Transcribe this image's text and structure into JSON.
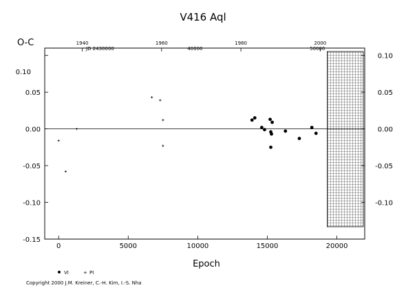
{
  "chart_data": {
    "type": "scatter",
    "title": "V416  Aql",
    "xlabel": "Epoch",
    "ylabel": "O-C",
    "xlim": [
      -1000,
      22000
    ],
    "ylim": [
      -0.15,
      0.11
    ],
    "x_ticks": [
      "0",
      "5000",
      "10000",
      "15000",
      "20000"
    ],
    "y_ticks": [
      "0.05",
      "0.00",
      "-0.05",
      "-0.10",
      "-0.15"
    ],
    "y_ticks_right": [
      "0.10",
      "0.05",
      "0.00",
      "-0.05",
      "-0.10"
    ],
    "y_top_left_label": "0.10",
    "top_year_ticks": [
      "1940",
      "1960",
      "1980",
      "2000"
    ],
    "jd_label": "JD 2430000",
    "jd_ticks": [
      "40000",
      "50000"
    ],
    "series": [
      {
        "name": "VI",
        "marker": "filled-circle",
        "points": [
          [
            13900,
            0.012
          ],
          [
            14100,
            0.015
          ],
          [
            14600,
            0.002
          ],
          [
            14800,
            -0.001
          ],
          [
            15200,
            0.013
          ],
          [
            15250,
            -0.004
          ],
          [
            15300,
            -0.007
          ],
          [
            15250,
            -0.025
          ],
          [
            15350,
            0.009
          ],
          [
            16300,
            -0.003
          ],
          [
            17300,
            -0.013
          ],
          [
            18200,
            0.002
          ],
          [
            18500,
            -0.006
          ]
        ]
      },
      {
        "name": "PI",
        "marker": "small-plus",
        "points": [
          [
            0,
            -0.016
          ],
          [
            500,
            -0.058
          ],
          [
            1300,
            0.0
          ],
          [
            6700,
            0.043
          ],
          [
            7300,
            0.039
          ],
          [
            7500,
            0.012
          ],
          [
            7500,
            -0.023
          ]
        ]
      }
    ],
    "legend": [
      {
        "key": "vi",
        "symbol": "•",
        "label": "VI"
      },
      {
        "key": "pi",
        "symbol": "+",
        "label": "PI"
      }
    ],
    "hatched_region": {
      "x_from": 19300,
      "x_to": 22000
    },
    "grid": false,
    "legend_placement": "bottom-left"
  },
  "copyright": "Copyright 2000 J.M. Kreiner, C.-H. Kim, I.-S. Nha"
}
